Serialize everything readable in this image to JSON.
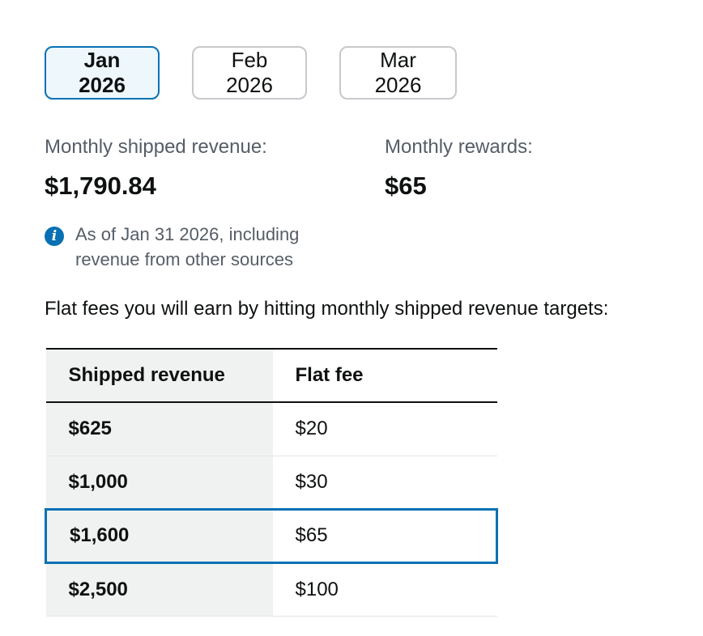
{
  "tabs": [
    {
      "label": "Jan 2026",
      "selected": true
    },
    {
      "label": "Feb 2026",
      "selected": false
    },
    {
      "label": "Mar 2026",
      "selected": false
    }
  ],
  "summary": {
    "shipped_revenue_label": "Monthly shipped revenue:",
    "shipped_revenue_value": "$1,790.84",
    "rewards_label": "Monthly rewards:",
    "rewards_value": "$65"
  },
  "info": {
    "icon": "info-icon",
    "icon_glyph": "i",
    "text": "As of Jan 31 2026, including revenue from other sources"
  },
  "intro_text": "Flat fees you will earn by hitting monthly shipped revenue targets:",
  "fee_table": {
    "headers": [
      "Shipped revenue",
      "Flat fee"
    ],
    "rows": [
      {
        "revenue": "$625",
        "fee": "$20",
        "highlighted": false
      },
      {
        "revenue": "$1,000",
        "fee": "$30",
        "highlighted": false
      },
      {
        "revenue": "$1,600",
        "fee": "$65",
        "highlighted": true
      },
      {
        "revenue": "$2,500",
        "fee": "$100",
        "highlighted": false
      }
    ]
  },
  "colors": {
    "accent": "#0971b3",
    "selected_tab_bg": "#edf7fc",
    "muted_text": "#565d66",
    "table_shade": "#f0f2f2"
  }
}
